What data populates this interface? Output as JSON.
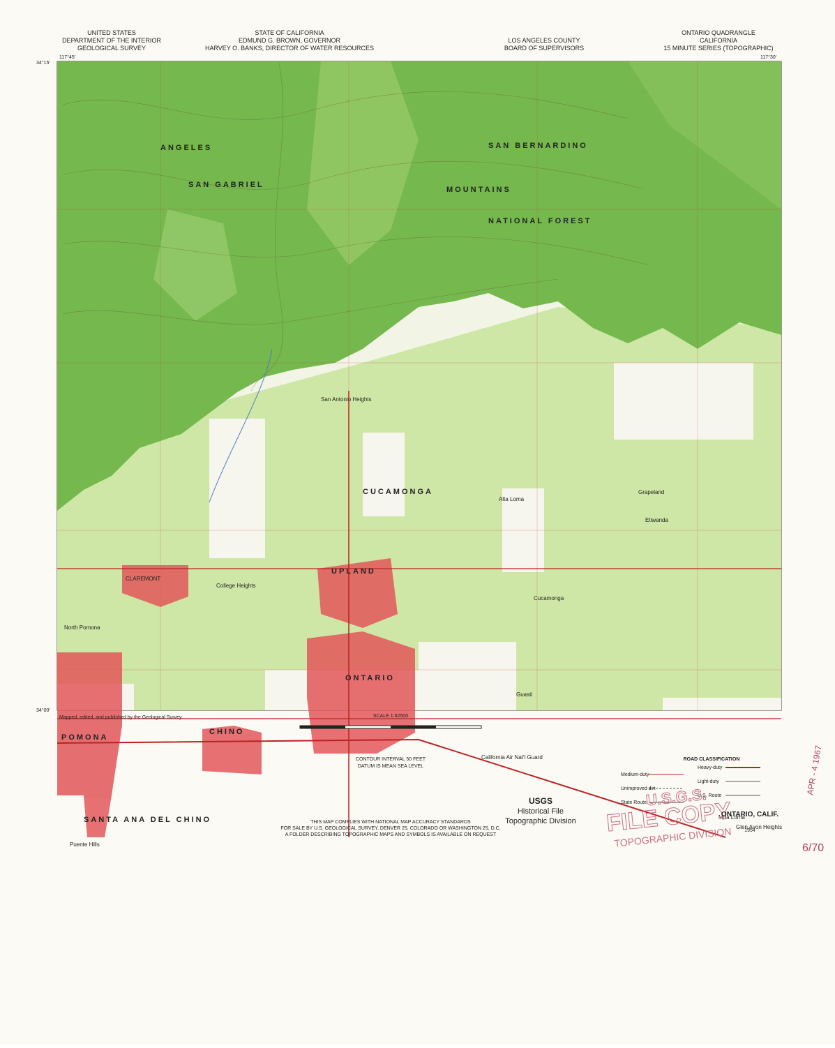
{
  "header": {
    "left": [
      "UNITED STATES",
      "DEPARTMENT OF THE INTERIOR",
      "GEOLOGICAL SURVEY"
    ],
    "center": [
      "STATE OF CALIFORNIA",
      "EDMUND G. BROWN, GOVERNOR",
      "HARVEY O. BANKS, DIRECTOR OF WATER RESOURCES"
    ],
    "county": [
      "LOS ANGELES COUNTY",
      "BOARD OF SUPERVISORS"
    ],
    "right": [
      "ONTARIO QUADRANGLE",
      "CALIFORNIA",
      "15 MINUTE SERIES (TOPOGRAPHIC)"
    ]
  },
  "coordinates": {
    "nw_lon": "117°45'",
    "nw_lat": "34°15'",
    "ne_lon": "117°30'",
    "sw_lat": "34°00'"
  },
  "places": [
    "ANGELES",
    "SAN GABRIEL",
    "MOUNTAINS",
    "SAN BERNARDINO",
    "NATIONAL FOREST",
    "CUCAMONGA",
    "UPLAND",
    "ONTARIO",
    "POMONA",
    "CLAREMONT",
    "CHINO",
    "North Pomona",
    "College Heights",
    "Alta Loma",
    "Cucamonga",
    "Etiwanda",
    "Grapeland",
    "Guasti",
    "SANTA ANA DEL CHINO",
    "Mira Loma",
    "Glen Avon Heights",
    "Puente Hills",
    "San Antonio Heights",
    "California Air Nat'l Guard"
  ],
  "footer": {
    "credit": "Mapped, edited, and published by the Geological Survey",
    "scale": "SCALE 1:62500",
    "contour": "CONTOUR INTERVAL 50 FEET",
    "datum": "DATUM IS MEAN SEA LEVEL",
    "standards": "THIS MAP COMPLIES WITH NATIONAL MAP ACCURACY STANDARDS",
    "sale": "FOR SALE BY U.S. GEOLOGICAL SURVEY, DENVER 25, COLORADO OR WASHINGTON 25, D.C.",
    "folder": "A FOLDER DESCRIBING TOPOGRAPHIC MAPS AND SYMBOLS IS AVAILABLE ON REQUEST",
    "stamp": [
      "USGS",
      "Historical File",
      "Topographic Division"
    ],
    "roads": {
      "title": "ROAD CLASSIFICATION",
      "items": [
        "Heavy-duty",
        "Medium-duty",
        "Light-duty",
        "Unimproved dirt",
        "U.S. Route",
        "State Route"
      ]
    },
    "name": "ONTARIO, CALIF.",
    "year": "1954",
    "file_copy": [
      "U.S.G.S.",
      "FILE COPY",
      "TOPOGRAPHIC DIVISION"
    ],
    "date_stamp": "APR - 4 1967",
    "note": "6/70"
  }
}
